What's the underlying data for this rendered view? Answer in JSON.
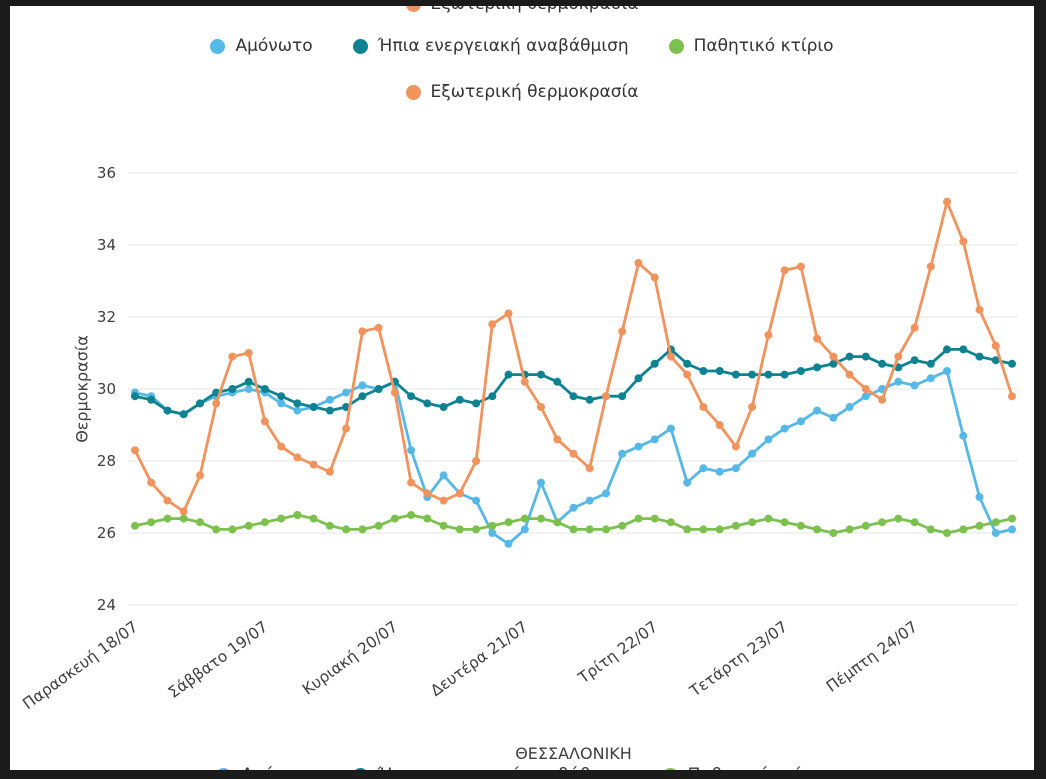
{
  "theme": {
    "frame_background": "#1b1b1b",
    "panel_background": "#ffffff",
    "grid_color": "#e4e4e4",
    "text_color": "#3e3e3e"
  },
  "chart_data": {
    "type": "line",
    "title": "",
    "xlabel": "ΘΕΣΣΑΛΟΝΙΚΗ",
    "ylabel": "Θερμοκρασία",
    "ylim": [
      24,
      36
    ],
    "yticks": [
      24,
      26,
      28,
      30,
      32,
      34,
      36
    ],
    "grid": true,
    "legend_position": "top",
    "points_per_day": 8,
    "x_tick_labels": [
      "Παρασκευή 18/07",
      "Σάββατο 19/07",
      "Κυριακή 20/07",
      "Δευτέρα 21/07",
      "Τρίτη 22/07",
      "Τετάρτη 23/07",
      "Πέμπτη 24/07"
    ],
    "series": [
      {
        "name": "Αμόνωτο",
        "color": "#56b8e6",
        "values": [
          29.9,
          29.8,
          29.4,
          29.3,
          29.6,
          29.8,
          29.9,
          30.0,
          29.9,
          29.6,
          29.4,
          29.5,
          29.7,
          29.9,
          30.1,
          30.0,
          30.2,
          28.3,
          27.0,
          27.6,
          27.1,
          26.9,
          26.0,
          25.7,
          26.1,
          27.4,
          26.3,
          26.7,
          26.9,
          27.1,
          28.2,
          28.4,
          28.6,
          28.9,
          27.4,
          27.8,
          27.7,
          27.8,
          28.2,
          28.6,
          28.9,
          29.1,
          29.4,
          29.2,
          29.5,
          29.8,
          30.0,
          30.2,
          30.1,
          30.3,
          30.5,
          28.7,
          27.0,
          26.0,
          26.1
        ]
      },
      {
        "name": "Ήπια ενεργειακή αναβάθμιση",
        "color": "#0f8292",
        "values": [
          29.8,
          29.7,
          29.4,
          29.3,
          29.6,
          29.9,
          30.0,
          30.2,
          30.0,
          29.8,
          29.6,
          29.5,
          29.4,
          29.5,
          29.8,
          30.0,
          30.2,
          29.8,
          29.6,
          29.5,
          29.7,
          29.6,
          29.8,
          30.4,
          30.4,
          30.4,
          30.2,
          29.8,
          29.7,
          29.8,
          29.8,
          30.3,
          30.7,
          31.1,
          30.7,
          30.5,
          30.5,
          30.4,
          30.4,
          30.4,
          30.4,
          30.5,
          30.6,
          30.7,
          30.9,
          30.9,
          30.7,
          30.6,
          30.8,
          30.7,
          31.1,
          31.1,
          30.9,
          30.8,
          30.7
        ]
      },
      {
        "name": "Παθητικό κτίριο",
        "color": "#7cc14e",
        "values": [
          26.2,
          26.3,
          26.4,
          26.4,
          26.3,
          26.1,
          26.1,
          26.2,
          26.3,
          26.4,
          26.5,
          26.4,
          26.2,
          26.1,
          26.1,
          26.2,
          26.4,
          26.5,
          26.4,
          26.2,
          26.1,
          26.1,
          26.2,
          26.3,
          26.4,
          26.4,
          26.3,
          26.1,
          26.1,
          26.1,
          26.2,
          26.4,
          26.4,
          26.3,
          26.1,
          26.1,
          26.1,
          26.2,
          26.3,
          26.4,
          26.3,
          26.2,
          26.1,
          26.0,
          26.1,
          26.2,
          26.3,
          26.4,
          26.3,
          26.1,
          26.0,
          26.1,
          26.2,
          26.3,
          26.4
        ]
      },
      {
        "name": "Εξωτερική θερμοκρασία",
        "color": "#f0935c",
        "values": [
          28.3,
          27.4,
          26.9,
          26.6,
          27.6,
          29.6,
          30.9,
          31.0,
          29.1,
          28.4,
          28.1,
          27.9,
          27.7,
          28.9,
          31.6,
          31.7,
          29.9,
          27.4,
          27.1,
          26.9,
          27.1,
          28.0,
          31.8,
          32.1,
          30.2,
          29.5,
          28.6,
          28.2,
          27.8,
          29.8,
          31.6,
          33.5,
          33.1,
          30.9,
          30.4,
          29.5,
          29.0,
          28.4,
          29.5,
          31.5,
          33.3,
          33.4,
          31.4,
          30.9,
          30.4,
          30.0,
          29.7,
          30.9,
          31.7,
          33.4,
          35.2,
          34.1,
          32.2,
          31.2,
          29.8
        ]
      }
    ]
  }
}
